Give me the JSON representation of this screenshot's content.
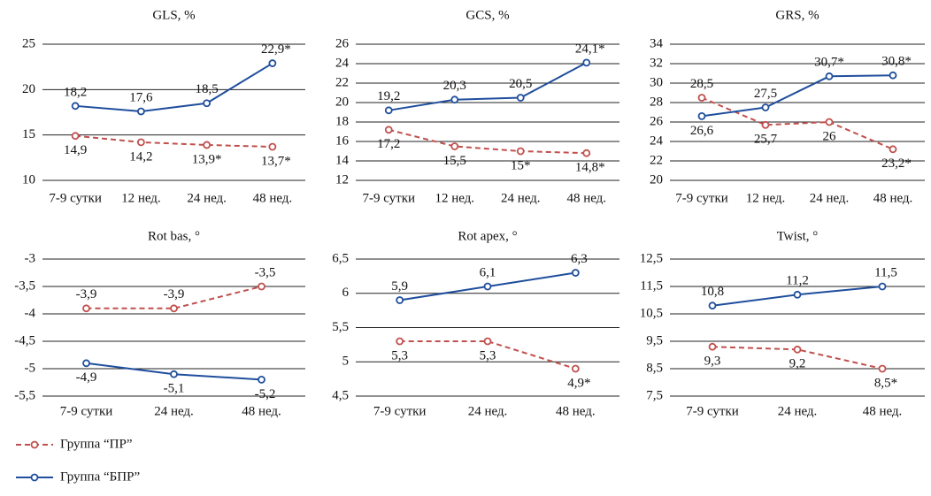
{
  "chart_data": [
    {
      "type": "line",
      "title": "GLS, %",
      "categories": [
        "7-9 сутки",
        "12 нед.",
        "24 нед.",
        "48 нед."
      ],
      "ylim": [
        10,
        25
      ],
      "yticks": [
        10,
        15,
        20,
        25
      ],
      "grid": true,
      "series": [
        {
          "values": [
            14.9,
            14.2,
            13.9,
            13.7
          ],
          "value_labels": [
            "14,9",
            "14,2",
            "13,9*",
            "13,7*"
          ]
        },
        {
          "values": [
            18.2,
            17.6,
            18.5,
            22.9
          ],
          "value_labels": [
            "18,2",
            "17,6",
            "18,5",
            "22,9*"
          ]
        }
      ]
    },
    {
      "type": "line",
      "title": "GCS, %",
      "categories": [
        "7-9 сутки",
        "12 нед.",
        "24 нед.",
        "48 нед."
      ],
      "ylim": [
        12,
        26
      ],
      "yticks": [
        12,
        14,
        16,
        18,
        20,
        22,
        24,
        26
      ],
      "grid": true,
      "series": [
        {
          "values": [
            17.2,
            15.5,
            15,
            14.8
          ],
          "value_labels": [
            "17,2",
            "15,5",
            "15*",
            "14,8*"
          ]
        },
        {
          "values": [
            19.2,
            20.3,
            20.5,
            24.1
          ],
          "value_labels": [
            "19,2",
            "20,3",
            "20,5",
            "24,1*"
          ]
        }
      ]
    },
    {
      "type": "line",
      "title": "GRS, %",
      "categories": [
        "7-9 сутки",
        "12 нед.",
        "24 нед.",
        "48 нед."
      ],
      "ylim": [
        20,
        34
      ],
      "yticks": [
        20,
        22,
        24,
        26,
        28,
        30,
        32,
        34
      ],
      "grid": true,
      "series": [
        {
          "values": [
            28.5,
            25.7,
            26,
            23.2
          ],
          "value_labels": [
            "28,5",
            "25,7",
            "26",
            "23,2*"
          ]
        },
        {
          "values": [
            26.6,
            27.5,
            30.7,
            30.8
          ],
          "value_labels": [
            "26,6",
            "27,5",
            "30,7*",
            "30,8*"
          ]
        }
      ]
    },
    {
      "type": "line",
      "title": "Rot bas, °",
      "categories": [
        "7-9 сутки",
        "24 нед.",
        "48 нед."
      ],
      "ylim": [
        -5.5,
        -3
      ],
      "yticks": [
        {
          "value": -5.5,
          "label": "-5,5"
        },
        -5,
        {
          "value": -4.5,
          "label": "-4,5"
        },
        -4,
        {
          "value": -3.5,
          "label": "-3,5"
        },
        -3
      ],
      "grid": true,
      "series": [
        {
          "values": [
            -3.9,
            -3.9,
            -3.5
          ],
          "value_labels": [
            "-3,9",
            "-3,9",
            "-3,5"
          ]
        },
        {
          "values": [
            -4.9,
            -5.1,
            -5.2
          ],
          "value_labels": [
            "-4,9",
            "-5,1",
            "-5,2"
          ]
        }
      ]
    },
    {
      "type": "line",
      "title": "Rot apex, °",
      "categories": [
        "7-9 сутки",
        "24 нед.",
        "48 нед."
      ],
      "ylim": [
        4.5,
        6.5
      ],
      "yticks": [
        {
          "value": 4.5,
          "label": "4,5"
        },
        5,
        {
          "value": 5.5,
          "label": "5,5"
        },
        6,
        {
          "value": 6.5,
          "label": "6,5"
        }
      ],
      "grid": true,
      "series": [
        {
          "values": [
            5.3,
            5.3,
            4.9
          ],
          "value_labels": [
            "5,3",
            "5,3",
            "4,9*"
          ]
        },
        {
          "values": [
            5.9,
            6.1,
            6.3
          ],
          "value_labels": [
            "5,9",
            "6,1",
            "6,3"
          ]
        }
      ]
    },
    {
      "type": "line",
      "title": "Twist, °",
      "categories": [
        "7-9 сутки",
        "24 нед.",
        "48 нед."
      ],
      "ylim": [
        7.5,
        12.5
      ],
      "yticks": [
        {
          "value": 7.5,
          "label": "7,5"
        },
        {
          "value": 8.5,
          "label": "8,5"
        },
        {
          "value": 9.5,
          "label": "9,5"
        },
        {
          "value": 10.5,
          "label": "10,5"
        },
        {
          "value": 11.5,
          "label": "11,5"
        },
        {
          "value": 12.5,
          "label": "12,5"
        }
      ],
      "grid": true,
      "series": [
        {
          "values": [
            9.3,
            9.2,
            8.5
          ],
          "value_labels": [
            "9,3",
            "9,2",
            "8,5*"
          ]
        },
        {
          "values": [
            10.8,
            11.2,
            11.5
          ],
          "value_labels": [
            "10,8",
            "11,2",
            "11,5"
          ]
        }
      ]
    }
  ],
  "legend": {
    "position": "bottom-left",
    "series": [
      {
        "name": "Группа “ПР”",
        "color": "#c0504d",
        "dashed": true
      },
      {
        "name": "Группа “БПР”",
        "color": "#1f4e9c",
        "dashed": false
      }
    ]
  }
}
